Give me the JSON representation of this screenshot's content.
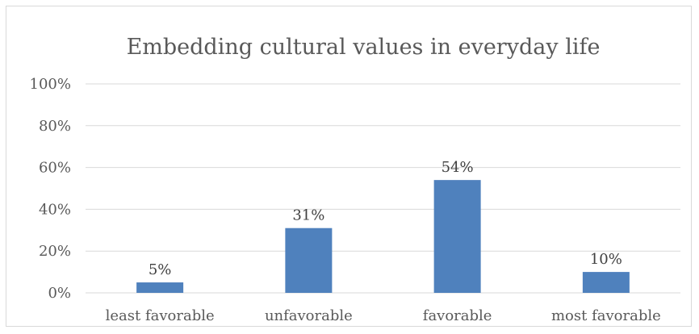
{
  "chart_data": {
    "type": "bar",
    "title": "Embedding cultural values in everyday life",
    "xlabel": "",
    "ylabel": "",
    "categories": [
      "least favorable",
      "unfavorable",
      "favorable",
      "most favorable"
    ],
    "values": [
      5,
      31,
      54,
      10
    ],
    "data_labels": [
      "5%",
      "31%",
      "54%",
      "10%"
    ],
    "ylim": [
      0,
      100
    ],
    "yticks": [
      0,
      20,
      40,
      60,
      80,
      100
    ],
    "ytick_labels": [
      "0%",
      "20%",
      "40%",
      "60%",
      "80%",
      "100%"
    ],
    "grid": true,
    "legend": "none",
    "bar_color": "#4f81bd"
  }
}
